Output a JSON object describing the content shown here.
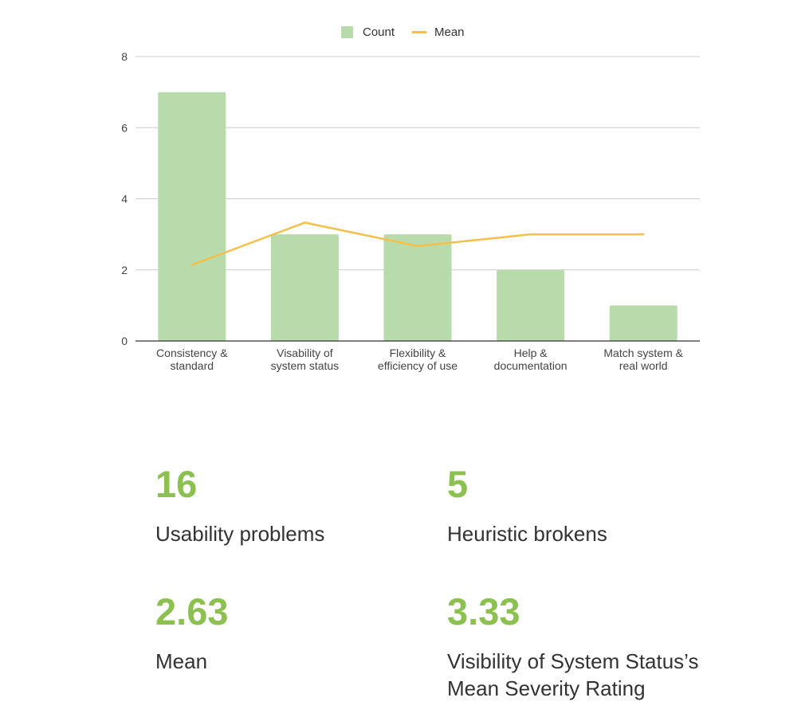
{
  "chart_data": {
    "type": "bar",
    "categories": [
      "Consistency & standard",
      "Visability of system status",
      "Flexibility & efficiency of use",
      "Help & documentation",
      "Match system & real world"
    ],
    "category_lines": [
      [
        "Consistency &",
        "standard"
      ],
      [
        "Visability of",
        "system status"
      ],
      [
        "Flexibility &",
        "efficiency of use"
      ],
      [
        "Help &",
        "documentation"
      ],
      [
        "Match system &",
        "real world"
      ]
    ],
    "series": [
      {
        "name": "Count",
        "type": "bar",
        "color": "#b7dbaa",
        "values": [
          7,
          3,
          3,
          2,
          1
        ]
      },
      {
        "name": "Mean",
        "type": "line",
        "color": "#f5c04a",
        "values": [
          2.14,
          3.33,
          2.67,
          3,
          3
        ]
      }
    ],
    "ylim": [
      0,
      8
    ],
    "yticks": [
      0,
      2,
      4,
      6,
      8
    ],
    "grid": true,
    "legend_position": "top-center",
    "title": "",
    "xlabel": "",
    "ylabel": ""
  },
  "stats": [
    {
      "value": "16",
      "label": "Usability problems"
    },
    {
      "value": "5",
      "label": "Heuristic brokens"
    },
    {
      "value": "2.63",
      "label": "Mean"
    },
    {
      "value": "3.33",
      "label": "Visibility of System Status’s\nMean Severity Rating"
    }
  ]
}
